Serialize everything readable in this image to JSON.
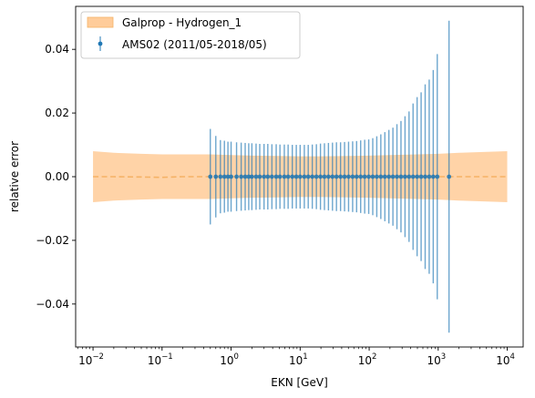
{
  "chart_data": {
    "type": "scatter",
    "xlabel": "EKN [GeV]",
    "ylabel": "relative error",
    "xscale": "log",
    "xlim": [
      0.0056,
      17000
    ],
    "ylim": [
      -0.0535,
      0.0535
    ],
    "x_ticks": [
      0.01,
      0.1,
      1,
      10,
      100,
      1000,
      10000
    ],
    "x_tick_labels": [
      {
        "base": "10",
        "exp": "−2"
      },
      {
        "base": "10",
        "exp": "−1"
      },
      {
        "base": "10",
        "exp": "0"
      },
      {
        "base": "10",
        "exp": "1"
      },
      {
        "base": "10",
        "exp": "2"
      },
      {
        "base": "10",
        "exp": "3"
      },
      {
        "base": "10",
        "exp": "4"
      }
    ],
    "y_ticks": [
      -0.04,
      -0.02,
      0.0,
      0.02,
      0.04
    ],
    "y_tick_labels": [
      "−0.04",
      "−0.02",
      "0.00",
      "0.02",
      "0.04"
    ],
    "legend": {
      "placement": "top-left",
      "entries": [
        "Galprop - Hydrogen_1",
        "AMS02 (2011/05-2018/05)"
      ]
    },
    "grid": false,
    "series": [
      {
        "name": "Galprop - Hydrogen_1",
        "kind": "band",
        "color": "#ffbb78",
        "line_color": "#f5b266",
        "x": [
          0.01,
          0.02,
          0.05,
          0.1,
          0.2,
          0.5,
          1,
          2,
          5,
          10,
          20,
          50,
          100,
          200,
          500,
          1000,
          2000,
          5000,
          10000
        ],
        "center": [
          0.0,
          0.0,
          -0.0001,
          -0.0002,
          0.0,
          0.0,
          0.0,
          0.0,
          0.0,
          0.0,
          0.0,
          0.0,
          0.0,
          0.0,
          0.0,
          0.0,
          0.0,
          0.0,
          0.0
        ],
        "upper": [
          0.008,
          0.0075,
          0.0072,
          0.007,
          0.007,
          0.007,
          0.0068,
          0.0066,
          0.0065,
          0.0064,
          0.0064,
          0.0065,
          0.0066,
          0.0068,
          0.007,
          0.0072,
          0.0075,
          0.0078,
          0.008
        ],
        "lower": [
          -0.008,
          -0.0075,
          -0.0072,
          -0.007,
          -0.007,
          -0.007,
          -0.0068,
          -0.0066,
          -0.0065,
          -0.0064,
          -0.0064,
          -0.0065,
          -0.0066,
          -0.0068,
          -0.007,
          -0.0072,
          -0.0075,
          -0.0078,
          -0.008
        ]
      },
      {
        "name": "AMS02 (2011/05-2018/05)",
        "kind": "errorbar",
        "color": "#1f77b4",
        "x": [
          0.5,
          0.6,
          0.7,
          0.8,
          0.9,
          1.0,
          1.2,
          1.4,
          1.6,
          1.8,
          2.0,
          2.3,
          2.6,
          3.0,
          3.4,
          3.9,
          4.5,
          5.1,
          5.9,
          6.7,
          7.7,
          8.8,
          10,
          11.5,
          13.1,
          15,
          17.2,
          19.7,
          22.5,
          25.7,
          29.4,
          33.6,
          38.5,
          44,
          50.3,
          57.6,
          65.8,
          75.3,
          86.1,
          98.5,
          112.7,
          128.9,
          147.5,
          168.7,
          193,
          220.8,
          252.5,
          288.9,
          330.5,
          378,
          432.4,
          494.7,
          565.9,
          647.3,
          740.5,
          847.1,
          969,
          1434
        ],
        "y": [
          0,
          0,
          0,
          0,
          0,
          0,
          0,
          0,
          0,
          0,
          0,
          0,
          0,
          0,
          0,
          0,
          0,
          0,
          0,
          0,
          0,
          0,
          0,
          0,
          0,
          0,
          0,
          0,
          0,
          0,
          0,
          0,
          0,
          0,
          0,
          0,
          0,
          0,
          0,
          0,
          0,
          0,
          0,
          0,
          0,
          0,
          0,
          0,
          0,
          0,
          0,
          0,
          0,
          0,
          0,
          0,
          0,
          0
        ],
        "err": [
          0.015,
          0.0128,
          0.0115,
          0.0113,
          0.011,
          0.011,
          0.0108,
          0.0107,
          0.0106,
          0.0105,
          0.0105,
          0.0104,
          0.0103,
          0.0103,
          0.0103,
          0.0102,
          0.0102,
          0.0101,
          0.0101,
          0.0101,
          0.01,
          0.01,
          0.01,
          0.01,
          0.01,
          0.0101,
          0.0102,
          0.0104,
          0.0105,
          0.0106,
          0.0107,
          0.0108,
          0.0108,
          0.0109,
          0.011,
          0.0111,
          0.0112,
          0.0114,
          0.0116,
          0.0117,
          0.0121,
          0.0127,
          0.0133,
          0.014,
          0.0147,
          0.0154,
          0.0165,
          0.0175,
          0.019,
          0.0205,
          0.023,
          0.025,
          0.0265,
          0.029,
          0.0305,
          0.0335,
          0.0385,
          0.049
        ]
      }
    ]
  }
}
